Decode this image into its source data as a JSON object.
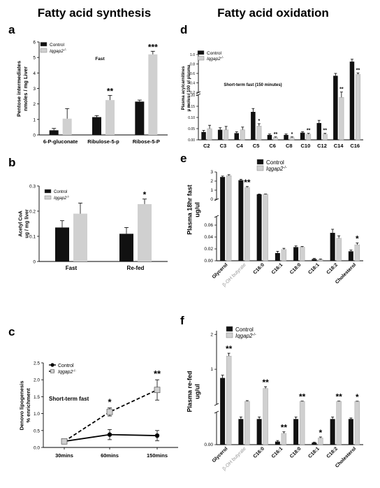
{
  "headers": {
    "left": "Fatty acid synthesis",
    "right": "Fatty acid oxidation"
  },
  "colors": {
    "control": "#111111",
    "ko": "#d0d0d0"
  },
  "chart_data": [
    {
      "id": "a",
      "type": "bar",
      "panel": "a",
      "ylabel": [
        "Pentose intermediates",
        "nmoles / mg Liver"
      ],
      "annotation": "Fast",
      "ylim": [
        0,
        6
      ],
      "yticks": [
        0,
        1,
        2,
        3,
        4,
        5,
        6
      ],
      "categories": [
        "6-P-gluconate",
        "Ribulose-5-p",
        "Ribose-5-P"
      ],
      "legend": [
        "Control",
        "Iqgap2-/-"
      ],
      "series": [
        {
          "name": "Control",
          "values": [
            0.3,
            1.15,
            2.15
          ],
          "errors": [
            0.12,
            0.1,
            0.1
          ]
        },
        {
          "name": "Iqgap2-/-",
          "values": [
            1.05,
            2.25,
            5.2
          ],
          "errors": [
            0.65,
            0.3,
            0.2
          ]
        }
      ],
      "sig": [
        "",
        "**",
        "***"
      ]
    },
    {
      "id": "b",
      "type": "bar",
      "panel": "b",
      "ylabel": [
        "Acetyl CoA",
        "ug / mg liver"
      ],
      "ylim": [
        0,
        0.3
      ],
      "yticks": [
        0,
        0.1,
        0.2,
        0.3
      ],
      "yticklabels": [
        "0",
        "0.1",
        "0.2",
        "0.3"
      ],
      "categories": [
        "Fast",
        "Re-fed"
      ],
      "legend": [
        "Control",
        "Iqgap2-/-"
      ],
      "series": [
        {
          "name": "Control",
          "values": [
            0.135,
            0.11
          ],
          "errors": [
            0.027,
            0.025
          ]
        },
        {
          "name": "Iqgap2-/-",
          "values": [
            0.19,
            0.228
          ],
          "errors": [
            0.042,
            0.02
          ]
        }
      ],
      "sig": [
        "",
        "*"
      ]
    },
    {
      "id": "c",
      "type": "line",
      "panel": "c",
      "ylabel": [
        "Denovo lipogenesis",
        "% enrichment"
      ],
      "annotation": "Short-term fast",
      "ylim": [
        0,
        2.5
      ],
      "yticks": [
        0,
        0.5,
        1,
        1.5,
        2,
        2.5
      ],
      "yticklabels": [
        "0.0",
        "0.5",
        "1.0",
        "1.5",
        "2.0",
        "2.5"
      ],
      "categories": [
        "30mins",
        "60mins",
        "150mins"
      ],
      "legend": [
        "Control",
        "Iqgap2-/-"
      ],
      "series": [
        {
          "name": "Control",
          "values": [
            0.18,
            0.38,
            0.35
          ],
          "errors": [
            0.05,
            0.15,
            0.15
          ]
        },
        {
          "name": "Iqgap2-/-",
          "values": [
            0.18,
            1.05,
            1.7
          ],
          "errors": [
            0.05,
            0.12,
            0.3
          ]
        }
      ],
      "sig": [
        "",
        "*",
        "**"
      ]
    },
    {
      "id": "d",
      "type": "bar",
      "panel": "d",
      "ylabel": [
        "Plasma acylcarnitines",
        "µ moles / 100 ul plasma"
      ],
      "annotation": "Short-term fast (150 minutes)",
      "categories": [
        "C2",
        "C3",
        "C4",
        "C5",
        "C6",
        "C8",
        "C10",
        "C12",
        "C14",
        "C16"
      ],
      "legend": [
        "Control",
        "Iqgap2-/-"
      ],
      "ybreak": {
        "lower": [
          0,
          0.2
        ],
        "upper": [
          0.2,
          1.0
        ]
      },
      "yticks_lower": [
        "0.00",
        "0.05",
        "0.10",
        "0.15",
        "0.20"
      ],
      "yticks_upper": [
        "0.2",
        "0.4",
        "0.6",
        "0.8",
        "1.0"
      ],
      "series": [
        {
          "name": "Control",
          "values": [
            0.035,
            0.045,
            0.03,
            0.125,
            0.022,
            0.022,
            0.032,
            0.075,
            0.55,
            0.85
          ],
          "errors": [
            0.007,
            0.009,
            0.006,
            0.015,
            0.004,
            0.004,
            0.004,
            0.012,
            0.05,
            0.05
          ]
        },
        {
          "name": "Iqgap2-/-",
          "values": [
            0.05,
            0.045,
            0.045,
            0.062,
            0.01,
            0.01,
            0.025,
            0.025,
            0.19,
            0.58
          ],
          "errors": [
            0.015,
            0.015,
            0.012,
            0.01,
            0.003,
            0.003,
            0.004,
            0.004,
            0.015,
            0.03
          ]
        }
      ],
      "sig": [
        "",
        "",
        "",
        "*",
        "**",
        "*",
        "**",
        "**",
        "**",
        "**"
      ]
    },
    {
      "id": "e",
      "type": "bar",
      "panel": "e",
      "ylabel": [
        "Plasma 18hr fast",
        "ug/ul"
      ],
      "categories": [
        "Glycerol",
        "β-OH butyrate",
        "C16:0",
        "C16:1",
        "C18:0",
        "C18:1",
        "C18:2",
        "Cholesterol"
      ],
      "category_colors": [
        "#000000",
        "#999999",
        "#000000",
        "#000000",
        "#000000",
        "#000000",
        "#000000",
        "#000000"
      ],
      "legend": [
        "Control",
        "Iqgap2-/-"
      ],
      "yticks_lower": [
        "0.00",
        "0.02",
        "0.04",
        "0.06"
      ],
      "yticks_upper": [
        "0",
        "1",
        "2",
        "3"
      ],
      "series": [
        {
          "name": "Control",
          "values": [
            2.45,
            2.1,
            0.55,
            0.013,
            0.023,
            0.003,
            0.047,
            0.016
          ],
          "errors": [
            0.1,
            0.1,
            0.02,
            0.003,
            0.002,
            0.001,
            0.006,
            0.002
          ]
        },
        {
          "name": "Iqgap2-/-",
          "values": [
            2.6,
            1.3,
            0.55,
            0.019,
            0.023,
            0.002,
            0.038,
            0.027
          ],
          "errors": [
            0.1,
            0.1,
            0.02,
            0.002,
            0.001,
            0.001,
            0.004,
            0.003
          ]
        }
      ],
      "sig": [
        "",
        "**",
        "",
        "",
        "",
        "",
        "",
        "*"
      ]
    },
    {
      "id": "f",
      "type": "bar",
      "panel": "f",
      "ylabel": [
        "Plasma re-fed",
        "ug/ul"
      ],
      "categories": [
        "Glycerol",
        "β-OH butyrate",
        "C16:0",
        "C16:1",
        "C18:0",
        "C18:1",
        "C18:2",
        "Cholesterol"
      ],
      "category_colors": [
        "#000000",
        "#999999",
        "#000000",
        "#000000",
        "#000000",
        "#000000",
        "#000000",
        "#000000"
      ],
      "legend": [
        "Control",
        "Iqgap2-/-"
      ],
      "yticks_lower": [
        "0.00"
      ],
      "yticks_upper": [
        "1",
        "2"
      ],
      "series": [
        {
          "name": "Control",
          "values": [
            0.75,
            0.05,
            0.05,
            0.006,
            0.05,
            0.004,
            0.05,
            0.05
          ],
          "errors": [
            0.08,
            0.004,
            0.004,
            0.002,
            0.004,
            0.001,
            0.004,
            0.002
          ]
        },
        {
          "name": "Iqgap2-/-",
          "values": [
            1.38,
            0.08,
            0.45,
            0.022,
            0.08,
            0.013,
            0.08,
            0.08
          ],
          "errors": [
            0.08,
            0.02,
            0.05,
            0.003,
            0.006,
            0.002,
            0.006,
            0.004
          ]
        }
      ],
      "sig": [
        "**",
        "",
        "**",
        "**",
        "**",
        "*",
        "**",
        "*"
      ]
    }
  ]
}
